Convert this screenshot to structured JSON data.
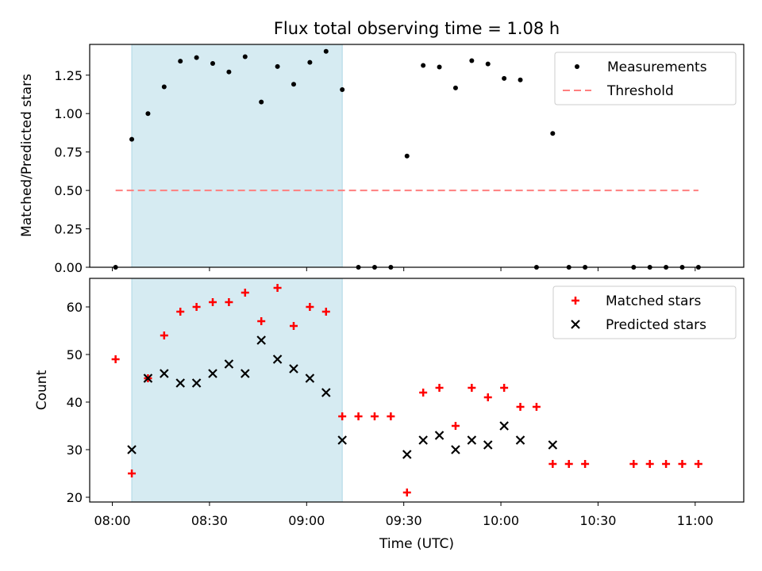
{
  "chart_data": [
    {
      "type": "scatter",
      "title": "Flux total observing time = 1.08 h",
      "xlabel": "",
      "ylabel": "Matched/Predicted stars",
      "xlim": [
        "07:53",
        "11:15"
      ],
      "ylim": [
        0,
        1.45
      ],
      "yticks": [
        0.0,
        0.25,
        0.5,
        0.75,
        1.0,
        1.25
      ],
      "ytick_labels": [
        "0.00",
        "0.25",
        "0.50",
        "0.75",
        "1.00",
        "1.25"
      ],
      "highlight_span": [
        "08:06",
        "09:11"
      ],
      "legend_position": "top-right",
      "series": [
        {
          "name": "Measurements",
          "style": "dot",
          "color": "#000000",
          "x": [
            "08:01",
            "08:06",
            "08:11",
            "08:16",
            "08:21",
            "08:26",
            "08:31",
            "08:36",
            "08:41",
            "08:46",
            "08:51",
            "08:56",
            "09:01",
            "09:06",
            "09:11",
            "09:16",
            "09:21",
            "09:26",
            "09:31",
            "09:36",
            "09:41",
            "09:46",
            "09:51",
            "09:56",
            "10:01",
            "10:06",
            "10:11",
            "10:16",
            "10:21",
            "10:26",
            "10:41",
            "10:46",
            "10:51",
            "10:56",
            "11:01"
          ],
          "y": [
            0,
            0.833,
            1.0,
            1.174,
            1.341,
            1.364,
            1.326,
            1.271,
            1.37,
            1.075,
            1.306,
            1.191,
            1.333,
            1.405,
            1.156,
            0,
            0,
            0,
            0.724,
            1.313,
            1.303,
            1.167,
            1.344,
            1.323,
            1.229,
            1.219,
            0,
            0.871,
            0,
            0,
            0,
            0,
            0,
            0,
            0
          ]
        },
        {
          "name": "Threshold",
          "style": "dashed-line",
          "color": "#ff7f7f",
          "x": [
            "08:01",
            "11:01"
          ],
          "y": [
            0.5,
            0.5
          ]
        }
      ]
    },
    {
      "type": "scatter",
      "title": "",
      "xlabel": "Time (UTC)",
      "ylabel": "Count",
      "xlim": [
        "07:53",
        "11:15"
      ],
      "ylim": [
        19,
        66
      ],
      "yticks": [
        20,
        30,
        40,
        50,
        60
      ],
      "xticks": [
        "08:00",
        "08:30",
        "09:00",
        "09:30",
        "10:00",
        "10:30",
        "11:00"
      ],
      "highlight_span": [
        "08:06",
        "09:11"
      ],
      "legend_position": "top-right",
      "series": [
        {
          "name": "Matched stars",
          "marker": "+",
          "color": "#ff0000",
          "x": [
            "08:01",
            "08:06",
            "08:11",
            "08:16",
            "08:21",
            "08:26",
            "08:31",
            "08:36",
            "08:41",
            "08:46",
            "08:51",
            "08:56",
            "09:01",
            "09:06",
            "09:11",
            "09:16",
            "09:21",
            "09:26",
            "09:31",
            "09:36",
            "09:41",
            "09:46",
            "09:51",
            "09:56",
            "10:01",
            "10:06",
            "10:11",
            "10:16",
            "10:21",
            "10:26",
            "10:41",
            "10:46",
            "10:51",
            "10:56",
            "11:01"
          ],
          "y": [
            49,
            25,
            45,
            54,
            59,
            60,
            61,
            61,
            63,
            57,
            64,
            56,
            60,
            59,
            37,
            37,
            37,
            37,
            21,
            42,
            43,
            35,
            43,
            41,
            43,
            39,
            39,
            27,
            27,
            27,
            27,
            27,
            27,
            27,
            27
          ]
        },
        {
          "name": "Predicted stars",
          "marker": "x",
          "color": "#000000",
          "x": [
            "08:06",
            "08:11",
            "08:16",
            "08:21",
            "08:26",
            "08:31",
            "08:36",
            "08:41",
            "08:46",
            "08:51",
            "08:56",
            "09:01",
            "09:06",
            "09:11",
            "09:31",
            "09:36",
            "09:41",
            "09:46",
            "09:51",
            "09:56",
            "10:01",
            "10:06",
            "10:16"
          ],
          "y": [
            30,
            45,
            46,
            44,
            44,
            46,
            48,
            46,
            53,
            49,
            47,
            45,
            42,
            32,
            29,
            32,
            33,
            30,
            32,
            31,
            35,
            32,
            31
          ]
        }
      ]
    }
  ]
}
